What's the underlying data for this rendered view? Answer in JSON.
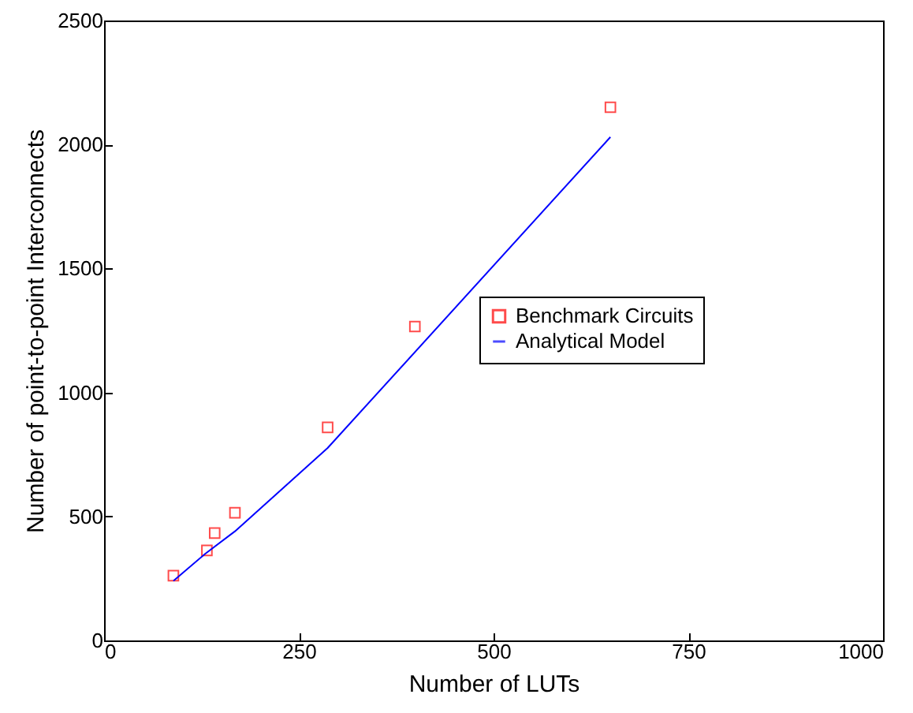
{
  "chart_data": {
    "type": "scatter",
    "xlabel": "Number of LUTs",
    "ylabel": "Number of point-to-point Interconnects",
    "xlim": [
      0,
      1000
    ],
    "xticks": [
      0,
      250,
      500,
      750,
      1000
    ],
    "ylim": [
      0,
      2500
    ],
    "yticks": [
      0,
      500,
      1000,
      1500,
      2000,
      2500
    ],
    "legend": "right",
    "grid": false,
    "series": [
      {
        "name": "Benchmark Circuits",
        "marker": "square",
        "color": "#ff0000",
        "x": [
          89,
          132,
          142,
          168,
          287,
          399,
          650
        ],
        "values": [
          261,
          363,
          433,
          515,
          859,
          1266,
          2150
        ]
      },
      {
        "name": "Analytical Model",
        "type": "line",
        "marker": "none",
        "line_style": "solid",
        "color": "#0000ff",
        "x": [
          89,
          130,
          168,
          287,
          650
        ],
        "values": [
          240,
          350,
          440,
          776,
          2030
        ]
      }
    ]
  }
}
